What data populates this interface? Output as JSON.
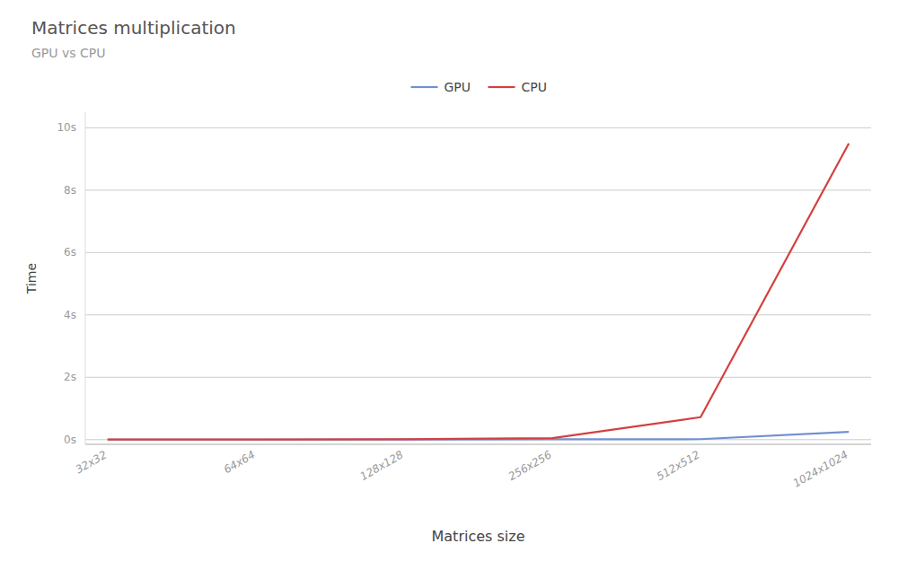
{
  "chart_data": {
    "type": "line",
    "title": "Matrices multiplication",
    "subtitle": "GPU vs CPU",
    "xlabel": "Matrices size",
    "ylabel": "Time",
    "categories": [
      "32x32",
      "64x64",
      "128x128",
      "256x256",
      "512x512",
      "1024x1024"
    ],
    "series": [
      {
        "name": "GPU",
        "color": "#7090d0",
        "values": [
          0.001,
          0.001,
          0.002,
          0.01,
          0.015,
          0.25
        ]
      },
      {
        "name": "CPU",
        "color": "#d44040",
        "values": [
          0.002,
          0.003,
          0.01,
          0.05,
          0.72,
          9.5
        ]
      }
    ],
    "ylim": [
      -0.15,
      10.5
    ],
    "yticks": [
      {
        "value": 0,
        "label": "0s"
      },
      {
        "value": 2,
        "label": "2s"
      },
      {
        "value": 4,
        "label": "4s"
      },
      {
        "value": 6,
        "label": "6s"
      },
      {
        "value": 8,
        "label": "8s"
      },
      {
        "value": 10,
        "label": "10s"
      }
    ],
    "grid": true,
    "legend": "top"
  }
}
